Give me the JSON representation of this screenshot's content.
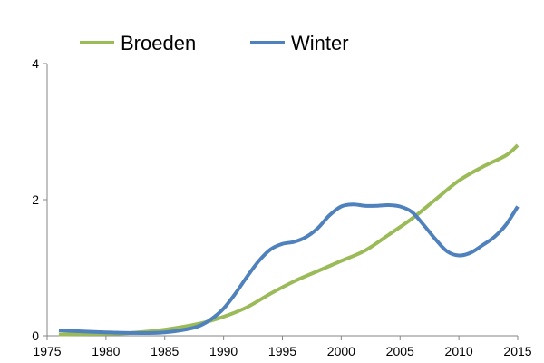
{
  "chart_data": {
    "type": "line",
    "title": "",
    "xlabel": "",
    "ylabel": "",
    "xlim": [
      1975,
      2015
    ],
    "ylim": [
      0,
      4
    ],
    "x_ticks": [
      "1975",
      "1980",
      "1985",
      "1990",
      "1995",
      "2000",
      "2005",
      "2010",
      "2015"
    ],
    "y_ticks": [
      "0",
      "2",
      "4"
    ],
    "grid": false,
    "legend_position": "top",
    "series": [
      {
        "name": "Broeden",
        "color": "#9bbb59",
        "points": [
          [
            1976,
            0.02
          ],
          [
            1980,
            0.03
          ],
          [
            1982,
            0.04
          ],
          [
            1985,
            0.09
          ],
          [
            1988,
            0.18
          ],
          [
            1990,
            0.28
          ],
          [
            1992,
            0.42
          ],
          [
            1994,
            0.62
          ],
          [
            1996,
            0.8
          ],
          [
            1998,
            0.95
          ],
          [
            2000,
            1.1
          ],
          [
            2002,
            1.25
          ],
          [
            2004,
            1.48
          ],
          [
            2006,
            1.72
          ],
          [
            2008,
            2.0
          ],
          [
            2010,
            2.28
          ],
          [
            2012,
            2.48
          ],
          [
            2014,
            2.65
          ],
          [
            2015,
            2.8
          ]
        ]
      },
      {
        "name": "Winter",
        "color": "#4f81bd",
        "points": [
          [
            1976,
            0.08
          ],
          [
            1980,
            0.05
          ],
          [
            1983,
            0.04
          ],
          [
            1985,
            0.05
          ],
          [
            1987,
            0.1
          ],
          [
            1988,
            0.15
          ],
          [
            1989,
            0.25
          ],
          [
            1990,
            0.4
          ],
          [
            1991,
            0.62
          ],
          [
            1992,
            0.87
          ],
          [
            1993,
            1.1
          ],
          [
            1994,
            1.27
          ],
          [
            1995,
            1.35
          ],
          [
            1996,
            1.38
          ],
          [
            1997,
            1.45
          ],
          [
            1998,
            1.58
          ],
          [
            1999,
            1.77
          ],
          [
            2000,
            1.9
          ],
          [
            2001,
            1.93
          ],
          [
            2002,
            1.91
          ],
          [
            2003,
            1.91
          ],
          [
            2004,
            1.92
          ],
          [
            2005,
            1.9
          ],
          [
            2006,
            1.82
          ],
          [
            2007,
            1.63
          ],
          [
            2008,
            1.42
          ],
          [
            2009,
            1.24
          ],
          [
            2010,
            1.18
          ],
          [
            2011,
            1.22
          ],
          [
            2012,
            1.33
          ],
          [
            2013,
            1.45
          ],
          [
            2014,
            1.63
          ],
          [
            2015,
            1.9
          ]
        ]
      }
    ]
  }
}
